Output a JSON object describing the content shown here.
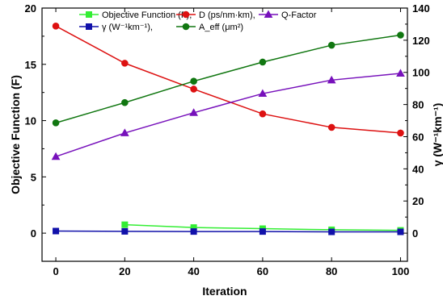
{
  "chart_data": {
    "type": "line",
    "xlabel": "Iteration",
    "ylabel": "Objective Function (F)",
    "y2label": "γ (W⁻¹km⁻¹)",
    "x_ticks": [
      "0",
      "20",
      "40",
      "60",
      "80",
      "100"
    ],
    "y_ticks": [
      "0",
      "5",
      "10",
      "15",
      "20"
    ],
    "y2_ticks": [
      "0",
      "20",
      "40",
      "60",
      "80",
      "100",
      "120",
      "140"
    ],
    "xlim": [
      -4,
      102
    ],
    "ylim": [
      -2.5,
      20
    ],
    "y2lim": [
      -17.5,
      140
    ],
    "grid": false,
    "legend_position": "top",
    "series": [
      {
        "name": "Objective Function (F),",
        "axis": "left",
        "color": "#33ee33",
        "marker": "square",
        "x": [
          20,
          40,
          60,
          80,
          100
        ],
        "y": [
          0.75,
          0.5,
          0.4,
          0.3,
          0.25
        ]
      },
      {
        "name": "D (ps/nm·km),",
        "axis": "left",
        "color": "#dd1111",
        "marker": "circle",
        "x": [
          0,
          20,
          40,
          60,
          80,
          100
        ],
        "y": [
          18.4,
          15.1,
          12.8,
          10.6,
          9.4,
          8.9
        ]
      },
      {
        "name": "Q-Factor",
        "axis": "left",
        "color": "#7711bb",
        "marker": "triangle",
        "x": [
          0,
          20,
          40,
          60,
          80,
          100
        ],
        "y": [
          6.8,
          8.9,
          10.7,
          12.4,
          13.6,
          14.2
        ]
      },
      {
        "name": "γ (W⁻¹km⁻¹),",
        "axis": "right",
        "color": "#1111aa",
        "marker": "square",
        "x": [
          0,
          20,
          40,
          60,
          80,
          100
        ],
        "y": [
          1.3,
          1.1,
          1.0,
          1.0,
          0.8,
          0.8
        ]
      },
      {
        "name": "A_eff (μm²)",
        "axis": "left",
        "color": "#117711",
        "marker": "circle",
        "x": [
          0,
          20,
          40,
          60,
          80,
          100
        ],
        "y": [
          9.8,
          11.6,
          13.5,
          15.2,
          16.7,
          17.6
        ]
      }
    ]
  }
}
